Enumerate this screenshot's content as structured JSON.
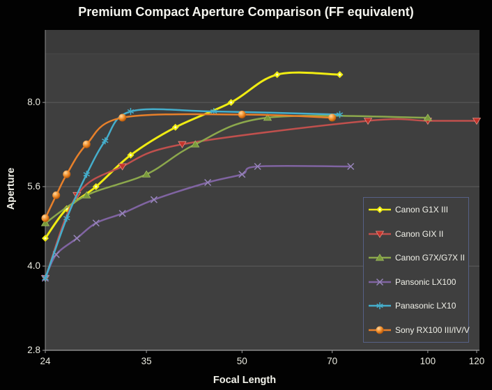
{
  "title": "Premium Compact Aperture Comparison (FF equivalent)",
  "x_axis": {
    "label": "Focal Length",
    "tick_labels": [
      "24",
      "35",
      "50",
      "70",
      "100",
      "120"
    ],
    "scale": "log"
  },
  "y_axis": {
    "label": "Aperture",
    "tick_labels": [
      "8.0",
      "5.6",
      "4.0",
      "2.8"
    ],
    "scale": "log"
  },
  "colors": {
    "background": "#020202",
    "plot_background": "#3F3F3F",
    "gridline": "#5D5D5D",
    "axis_line": "#9E9E9E",
    "text": "#E9E9DF",
    "legend_border": "#566186"
  },
  "chart_data": {
    "type": "line",
    "title": "Premium Compact Aperture Comparison (FF equivalent)",
    "xlabel": "Focal Length",
    "ylabel": "Aperture",
    "x_scale": "log",
    "y_scale": "log",
    "xlim": [
      24,
      120
    ],
    "ylim": [
      2.8,
      11
    ],
    "x_ticks": [
      24,
      35,
      50,
      70,
      100,
      120
    ],
    "y_ticks": [
      8.0,
      5.6,
      4.0,
      2.8
    ],
    "grid": "horizontal",
    "legend_position": "inside-bottom-right",
    "series": [
      {
        "name": "Canon G1X III",
        "color": "#F0EC12",
        "marker": "diamond",
        "points": [
          [
            24,
            4.5
          ],
          [
            26,
            5.1
          ],
          [
            29,
            5.6
          ],
          [
            33,
            6.4
          ],
          [
            39,
            7.2
          ],
          [
            48,
            8.0
          ],
          [
            57,
            9.0
          ],
          [
            72,
            9.0
          ]
        ]
      },
      {
        "name": "Canon GIX II",
        "color": "#C0504D",
        "marker": "triangle-down",
        "points": [
          [
            24,
            3.8
          ],
          [
            27,
            5.4
          ],
          [
            32,
            6.1
          ],
          [
            40,
            6.7
          ],
          [
            80,
            7.4
          ],
          [
            100,
            7.4
          ],
          [
            120,
            7.4
          ]
        ]
      },
      {
        "name": "Canon G7X/G7X II",
        "color": "#8CA84C",
        "marker": "triangle-up",
        "points": [
          [
            24,
            4.8
          ],
          [
            28,
            5.4
          ],
          [
            35,
            5.9
          ],
          [
            42,
            6.7
          ],
          [
            55,
            7.5
          ],
          [
            100,
            7.5
          ]
        ]
      },
      {
        "name": "Pansonic LX100",
        "color": "#8064A2",
        "marker": "cross",
        "points": [
          [
            24,
            3.8
          ],
          [
            25,
            4.2
          ],
          [
            27,
            4.5
          ],
          [
            29,
            4.8
          ],
          [
            32,
            5.0
          ],
          [
            36,
            5.3
          ],
          [
            44,
            5.7
          ],
          [
            50,
            5.9
          ],
          [
            53,
            6.1
          ],
          [
            75,
            6.1
          ]
        ]
      },
      {
        "name": "Panasonic LX10",
        "color": "#45AECC",
        "marker": "asterisk",
        "points": [
          [
            24,
            3.8
          ],
          [
            26,
            4.9
          ],
          [
            28,
            5.9
          ],
          [
            30,
            6.8
          ],
          [
            33,
            7.7
          ],
          [
            45,
            7.7
          ],
          [
            72,
            7.6
          ]
        ]
      },
      {
        "name": "Sony RX100 III/IV/V",
        "color": "#E8802A",
        "marker": "circle",
        "points": [
          [
            24,
            4.9
          ],
          [
            25,
            5.4
          ],
          [
            26,
            5.9
          ],
          [
            28,
            6.7
          ],
          [
            32,
            7.5
          ],
          [
            50,
            7.6
          ],
          [
            70,
            7.5
          ]
        ]
      }
    ]
  }
}
